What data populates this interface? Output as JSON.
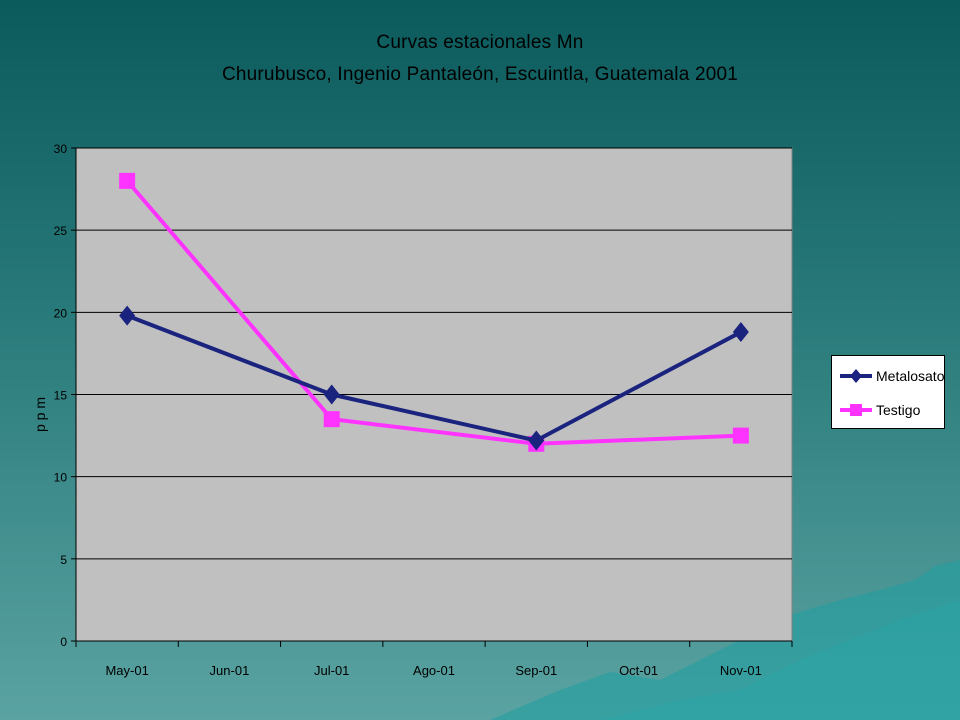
{
  "slide": {
    "title_line_1": "Curvas estacionales Mn",
    "title_line_2": "Churubusco, Ingenio Pantaleón, Escuintla, Guatemala 2001"
  },
  "colors": {
    "plot_bg": "#c0c0c0",
    "gridline": "#000000",
    "metalosato": "#1a237e",
    "testigo": "#ff33ff"
  },
  "chart_data": {
    "type": "line",
    "title": "Curvas estacionales Mn\nChurubusco, Ingenio Pantaleón, Escuintla, Guatemala 2001",
    "xlabel": "",
    "ylabel": "p p m",
    "categories": [
      "May-01",
      "Jun-01",
      "Jul-01",
      "Ago-01",
      "Sep-01",
      "Oct-01",
      "Nov-01"
    ],
    "ylim": [
      0,
      30
    ],
    "yticks": [
      0,
      5,
      10,
      15,
      20,
      25,
      30
    ],
    "grid": true,
    "legend_position": "right",
    "series": [
      {
        "name": "Metalosato",
        "marker": "diamond",
        "points": [
          {
            "x": "May-01",
            "y": 19.8
          },
          {
            "x": "Jul-01",
            "y": 15.0
          },
          {
            "x": "Sep-01",
            "y": 12.2
          },
          {
            "x": "Nov-01",
            "y": 18.8
          }
        ]
      },
      {
        "name": "Testigo",
        "marker": "square",
        "points": [
          {
            "x": "May-01",
            "y": 28.0
          },
          {
            "x": "Jul-01",
            "y": 13.5
          },
          {
            "x": "Sep-01",
            "y": 12.0
          },
          {
            "x": "Nov-01",
            "y": 12.5
          }
        ]
      }
    ]
  }
}
